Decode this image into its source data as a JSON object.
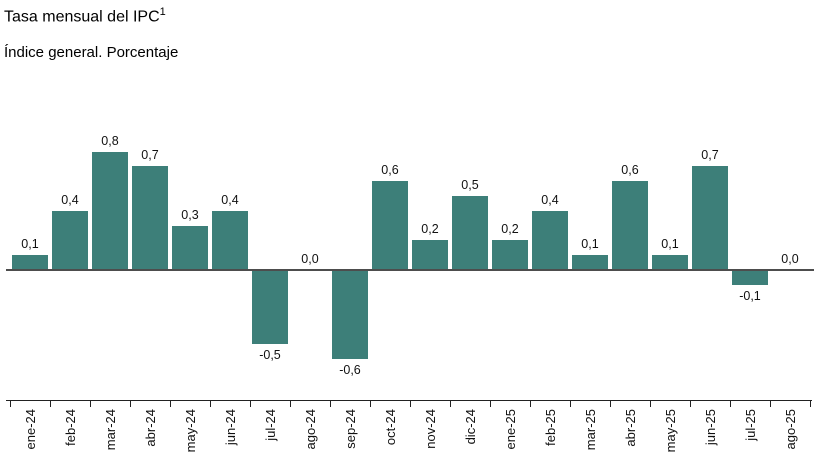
{
  "header": {
    "title": "Tasa mensual del IPC",
    "superscript": "1",
    "subtitle": "Índice general. Porcentaje"
  },
  "chart_data": {
    "type": "bar",
    "title": "Tasa mensual del IPC",
    "subtitle": "Índice general. Porcentaje",
    "categories": [
      "ene-24",
      "feb-24",
      "mar-24",
      "abr-24",
      "may-24",
      "jun-24",
      "jul-24",
      "ago-24",
      "sep-24",
      "oct-24",
      "nov-24",
      "dic-24",
      "ene-25",
      "feb-25",
      "mar-25",
      "abr-25",
      "may-25",
      "jun-25",
      "jul-25",
      "ago-25"
    ],
    "values": [
      0.1,
      0.4,
      0.8,
      0.7,
      0.3,
      0.4,
      -0.5,
      0.0,
      -0.6,
      0.6,
      0.2,
      0.5,
      0.2,
      0.4,
      0.1,
      0.6,
      0.1,
      0.7,
      -0.1,
      0.0
    ],
    "value_labels": [
      "0,1",
      "0,4",
      "0,8",
      "0,7",
      "0,3",
      "0,4",
      "-0,5",
      "0,0",
      "-0,6",
      "0,6",
      "0,2",
      "0,5",
      "0,2",
      "0,4",
      "0,1",
      "0,6",
      "0,1",
      "0,7",
      "-0,1",
      "0,0"
    ],
    "bar_color": "#3d7f79",
    "axis_color": "#222222",
    "zero_line_color": "#4d4d4d",
    "ylim": [
      -0.8,
      1.0
    ],
    "grid": false,
    "legend": false,
    "decimal_separator": ",",
    "xlabel": "",
    "ylabel": ""
  }
}
